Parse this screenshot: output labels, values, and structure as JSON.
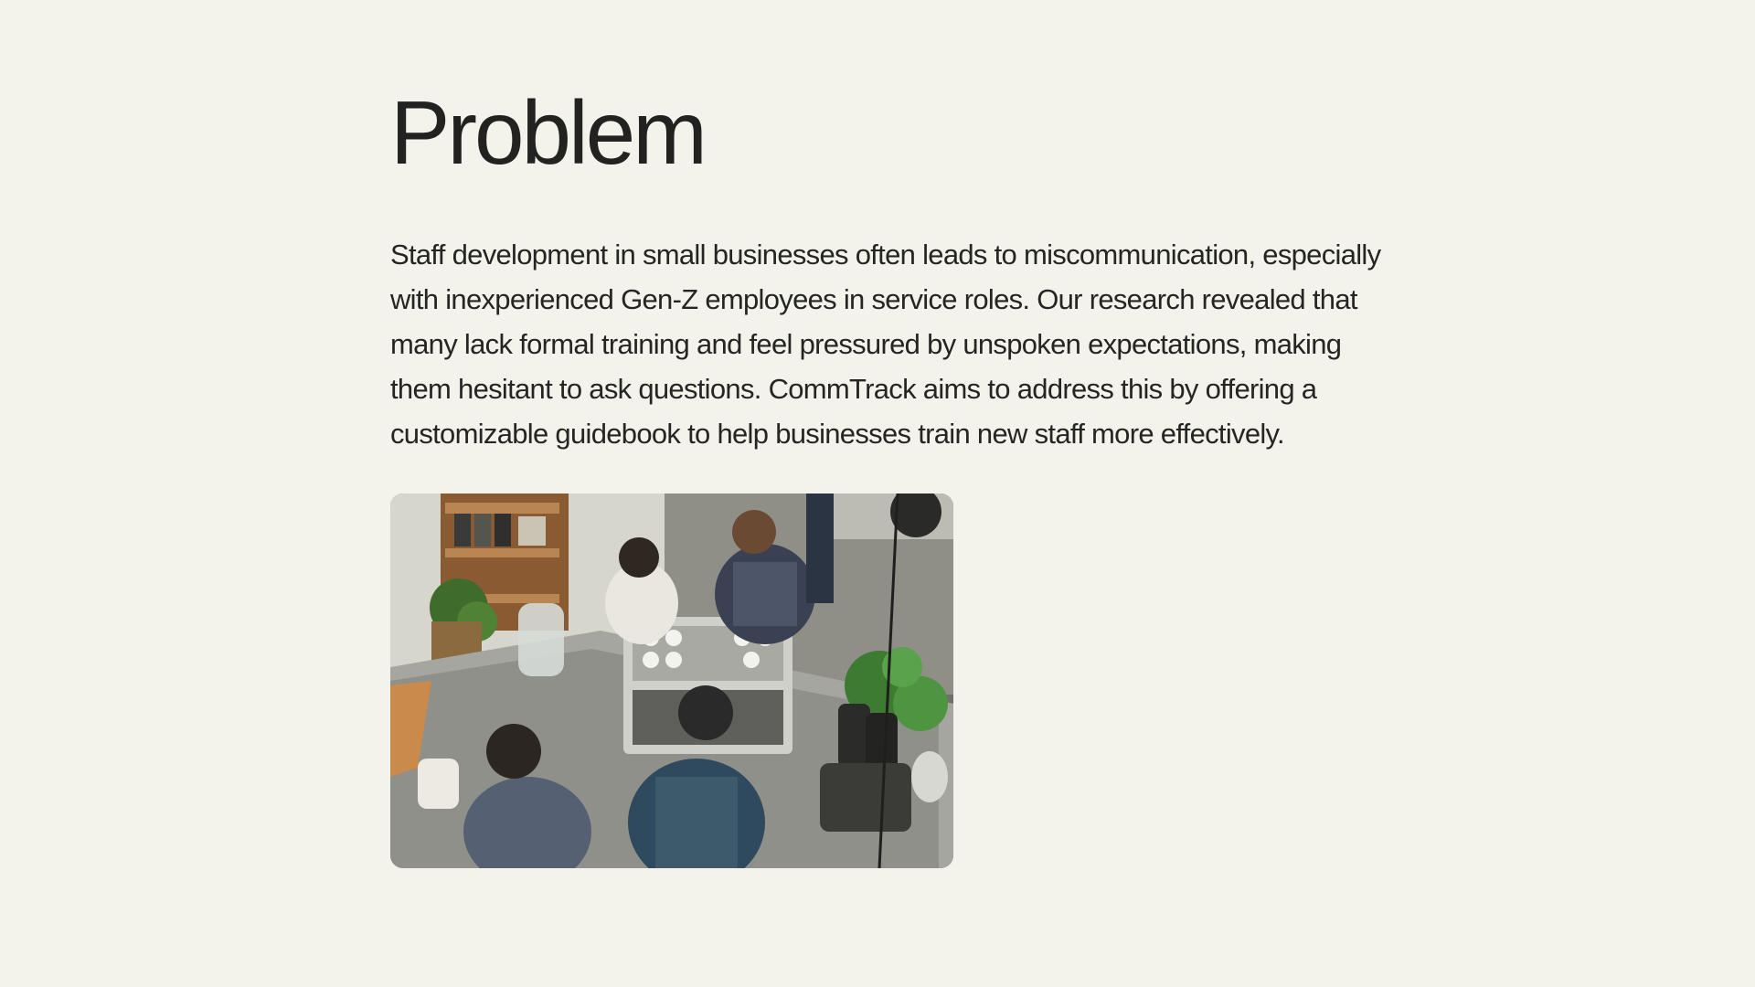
{
  "section": {
    "title": "Problem",
    "body": "Staff development in small businesses often leads to miscommunication, especially with inexperienced Gen-Z employees in service roles. Our research revealed that many lack formal training and feel pressured by unspoken expectations, making them hesitant to ask questions. CommTrack aims to address this by offering a customizable guidebook to help businesses train new staff more effectively."
  },
  "colors": {
    "background": "#f3f3eb",
    "text": "#222220"
  }
}
